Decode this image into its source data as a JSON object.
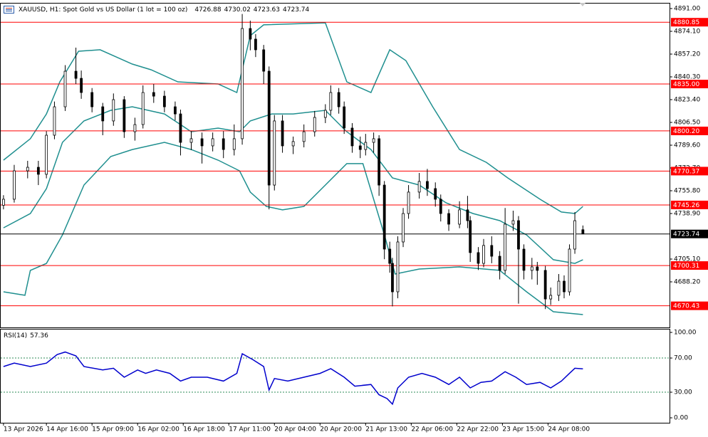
{
  "chart_data": [
    {
      "type": "candlestick",
      "title": "XAUUSD, H1:  Spot Gold vs US Dollar (1 lot = 100 oz)",
      "x": [
        0,
        4,
        9,
        13,
        16,
        19,
        23,
        27,
        29,
        33,
        37,
        41,
        45,
        49,
        52,
        56,
        60,
        64,
        66,
        70,
        74,
        78,
        82,
        86,
        89,
        92,
        94,
        97,
        99,
        101,
        104,
        108,
        112,
        116,
        120,
        122,
        125,
        127,
        130,
        133,
        135,
        138,
        140,
        142,
        144,
        145,
        147,
        149,
        151,
        155,
        158,
        161,
        163,
        166,
        170,
        173,
        174,
        177,
        179,
        182,
        185,
        187,
        190,
        192,
        194,
        197,
        199,
        202,
        204,
        207,
        209,
        211,
        213,
        216
      ],
      "open": [
        4745.0,
        4749.5,
        4770.6,
        4773.2,
        4768.0,
        4797.0,
        4818.1,
        4844.5,
        4839.2,
        4828.7,
        4818.1,
        4807.6,
        4823.4,
        4799.6,
        4804.9,
        4828.7,
        4826.0,
        4818.1,
        4812.8,
        4791.7,
        4794.4,
        4789.1,
        4794.4,
        4786.4,
        4794.4,
        4876.2,
        4868.3,
        4860.4,
        4844.5,
        4760.0,
        4807.6,
        4789.1,
        4792.3,
        4799.6,
        4810.2,
        4815.5,
        4828.7,
        4818.1,
        4802.3,
        4789.1,
        4786.4,
        4791.7,
        4794.4,
        4760.0,
        4712.5,
        4701.9,
        4680.8,
        4717.8,
        4738.9,
        4754.8,
        4762.7,
        4757.4,
        4749.5,
        4738.9,
        4731.0,
        4741.6,
        4733.6,
        4709.9,
        4701.9,
        4715.2,
        4707.2,
        4696.7,
        4731.0,
        4733.6,
        4712.5,
        4696.7,
        4699.3,
        4696.7,
        4675.5,
        4678.2,
        4688.7,
        4680.8,
        4712.5,
        4726.88
      ],
      "high": [
        4752.5,
        4775.0,
        4778.0,
        4778.0,
        4800.0,
        4822.0,
        4849.0,
        4862.0,
        4845.0,
        4832.0,
        4821.0,
        4828.0,
        4826.0,
        4810.0,
        4834.0,
        4835.0,
        4830.0,
        4822.0,
        4816.0,
        4800.0,
        4799.0,
        4799.0,
        4800.0,
        4805.0,
        4887.0,
        4882.0,
        4872.0,
        4864.0,
        4848.0,
        4812.0,
        4812.0,
        4796.0,
        4805.0,
        4815.0,
        4820.0,
        4834.0,
        4832.0,
        4822.0,
        4806.0,
        4796.0,
        4798.0,
        4799.0,
        4797.0,
        4763.0,
        4718.0,
        4706.0,
        4722.0,
        4743.0,
        4760.0,
        4769.0,
        4772.0,
        4762.0,
        4753.0,
        4742.0,
        4748.0,
        4752.0,
        4737.0,
        4714.0,
        4720.0,
        4722.0,
        4711.0,
        4743.0,
        4741.0,
        4737.0,
        4716.0,
        4706.0,
        4703.0,
        4700.0,
        4684.0,
        4694.0,
        4693.0,
        4716.0,
        4740.0,
        4730.02
      ],
      "low": [
        4742.0,
        4747.0,
        4765.0,
        4760.0,
        4765.0,
        4794.0,
        4815.0,
        4835.0,
        4824.0,
        4814.0,
        4797.0,
        4804.0,
        4795.0,
        4793.0,
        4802.0,
        4821.0,
        4814.0,
        4808.0,
        4782.0,
        4786.0,
        4776.0,
        4785.0,
        4780.0,
        4782.0,
        4790.0,
        4860.0,
        4855.0,
        4835.0,
        4742.0,
        4756.0,
        4784.0,
        4783.0,
        4788.0,
        4796.0,
        4806.0,
        4812.0,
        4813.0,
        4798.0,
        4784.0,
        4780.0,
        4782.0,
        4784.0,
        4752.0,
        4705.0,
        4695.0,
        4670.0,
        4676.0,
        4714.0,
        4735.0,
        4750.0,
        4752.0,
        4744.0,
        4733.0,
        4726.0,
        4728.0,
        4728.0,
        4703.0,
        4697.0,
        4699.0,
        4702.0,
        4690.0,
        4694.0,
        4726.0,
        4672.0,
        4690.0,
        4690.0,
        4686.0,
        4668.0,
        4671.0,
        4674.0,
        4676.0,
        4678.0,
        4709.0,
        4723.63
      ],
      "close": [
        4749.5,
        4770.6,
        4773.2,
        4768.0,
        4797.0,
        4818.1,
        4844.5,
        4839.2,
        4828.7,
        4818.1,
        4807.6,
        4823.4,
        4799.6,
        4804.9,
        4828.7,
        4826.0,
        4818.1,
        4812.8,
        4791.7,
        4794.4,
        4789.1,
        4794.4,
        4786.4,
        4794.4,
        4876.2,
        4868.3,
        4860.4,
        4844.5,
        4760.0,
        4807.6,
        4789.1,
        4792.3,
        4799.6,
        4810.2,
        4815.5,
        4828.7,
        4818.1,
        4802.3,
        4789.1,
        4786.4,
        4791.7,
        4794.4,
        4760.0,
        4712.5,
        4701.9,
        4680.8,
        4717.8,
        4738.9,
        4754.8,
        4762.7,
        4757.4,
        4749.5,
        4738.9,
        4731.0,
        4741.6,
        4733.6,
        4709.9,
        4701.9,
        4715.2,
        4707.2,
        4696.7,
        4731.0,
        4733.6,
        4712.5,
        4696.7,
        4699.3,
        4696.7,
        4675.5,
        4678.2,
        4688.7,
        4680.8,
        4712.5,
        4733.6,
        4723.74
      ],
      "up_color": "#ffffff",
      "down_color": "#000000",
      "wick_color": "#000000",
      "bands": [
        {
          "color": "#1f8f8f",
          "x": [
            0,
            10,
            16,
            21,
            28,
            36,
            48,
            55,
            65,
            80,
            87,
            92,
            97,
            120,
            128,
            137,
            144,
            150,
            160,
            170,
            180,
            188,
            200,
            208,
            213,
            216
          ],
          "values": [
            4778.5,
            4794.4,
            4812.8,
            4836.6,
            4859.3,
            4860.4,
            4849.8,
            4845.6,
            4836.6,
            4835.0,
            4828.7,
            4870.9,
            4878.9,
            4880.4,
            4836.6,
            4828.7,
            4860.4,
            4852.4,
            4818.1,
            4786.4,
            4776.9,
            4765.3,
            4749.5,
            4740.0,
            4738.9,
            4744.2
          ]
        },
        {
          "color": "#1f8f8f",
          "x": [
            0,
            10,
            16,
            22,
            30,
            40,
            48,
            60,
            70,
            80,
            88,
            92,
            100,
            108,
            120,
            128,
            137,
            145,
            155,
            165,
            175,
            185,
            195,
            205,
            213,
            216
          ],
          "values": [
            4728.3,
            4738.9,
            4757.4,
            4791.7,
            4807.6,
            4815.5,
            4818.1,
            4812.8,
            4799.6,
            4802.3,
            4799.6,
            4807.6,
            4812.8,
            4812.8,
            4815.5,
            4799.6,
            4786.4,
            4765.3,
            4760.0,
            4746.8,
            4738.9,
            4733.6,
            4723.0,
            4704.6,
            4701.9,
            4704.6
          ]
        },
        {
          "color": "#1f8f8f",
          "x": [
            0,
            8,
            10,
            16,
            22,
            30,
            40,
            48,
            60,
            70,
            80,
            88,
            92,
            98,
            104,
            112,
            120,
            128,
            134,
            142,
            146,
            155,
            170,
            185,
            195,
            205,
            216
          ],
          "values": [
            4680.8,
            4678.2,
            4696.7,
            4701.9,
            4723.0,
            4760.0,
            4781.2,
            4786.4,
            4791.7,
            4786.4,
            4778.5,
            4770.6,
            4754.8,
            4744.2,
            4741.6,
            4744.2,
            4760.0,
            4775.9,
            4775.9,
            4723.0,
            4694.0,
            4697.7,
            4699.3,
            4696.7,
            4680.8,
            4666.0,
            4663.9
          ]
        }
      ],
      "levels": [
        4880.85,
        {
          "value": 4835.0,
          "label": "4835.00"
        },
        {
          "value": 4800.2,
          "label": "4800.20"
        },
        4770.37,
        4745.26,
        4700.31,
        4670.43
      ],
      "level_color": "#ff0000",
      "last_color": "#000000",
      "xlim": [
        -1.3,
        248.3
      ],
      "ylim": [
        4654.4,
        4894.7
      ],
      "yticks": [
        {
          "value": 4891,
          "label": "4891.00"
        },
        {
          "value": 4874.1,
          "label": "4874.10"
        },
        {
          "value": 4857.2,
          "label": "4857.20"
        },
        {
          "value": 4840.3,
          "label": "4840.30"
        },
        {
          "value": 4823.4,
          "label": "4823.40"
        },
        {
          "value": 4806.5,
          "label": "4806.50"
        },
        {
          "value": 4789.6,
          "label": "4789.60"
        },
        {
          "value": 4772.7,
          "label": "4772.70"
        },
        {
          "value": 4755.8,
          "label": "4755.80"
        },
        {
          "value": 4738.9,
          "label": "4738.90"
        },
        {
          "value": 4705.1,
          "label": "4705.10"
        },
        {
          "value": 4688.2,
          "label": "4688.20"
        }
      ],
      "xticks": [
        {
          "value": 0,
          "label": "13 Apr 2026"
        },
        {
          "value": 16,
          "label": "14 Apr 16:00"
        },
        {
          "value": 33,
          "label": "15 Apr 09:00"
        },
        {
          "value": 50,
          "label": "16 Apr 02:00"
        },
        {
          "value": 67,
          "label": "16 Apr 18:00"
        },
        {
          "value": 84,
          "label": "17 Apr 11:00"
        },
        {
          "value": 101,
          "label": "20 Apr 04:00"
        },
        {
          "value": 118,
          "label": "20 Apr 20:00"
        },
        {
          "value": 135,
          "label": "21 Apr 13:00"
        },
        {
          "value": 152,
          "label": "22 Apr 06:00"
        },
        {
          "value": 169,
          "label": "22 Apr 22:00"
        },
        {
          "value": 186,
          "label": "23 Apr 15:00"
        },
        {
          "value": 203,
          "label": "24 Apr 08:00"
        }
      ]
    },
    {
      "type": "line",
      "title": "RSI(14)",
      "color": "#0000cd",
      "x": [
        0,
        4,
        10,
        16,
        20,
        23,
        27,
        30,
        37,
        41,
        45,
        50,
        53,
        57,
        62,
        66,
        70,
        76,
        82,
        87,
        89,
        93,
        97,
        99,
        101,
        106,
        112,
        118,
        122,
        127,
        131,
        137,
        140,
        143,
        145,
        147,
        151,
        156,
        161,
        166,
        170,
        174,
        178,
        182,
        187,
        191,
        195,
        200,
        204,
        208,
        211,
        213,
        216
      ],
      "values": [
        60,
        64,
        60,
        64,
        74,
        77,
        72.5,
        60,
        56,
        58,
        47.5,
        56,
        52,
        56,
        52,
        43,
        47.5,
        47.5,
        43,
        52,
        75,
        68,
        60,
        32.5,
        46,
        43,
        47.5,
        52,
        57.5,
        47.5,
        37,
        39,
        27,
        22.5,
        16,
        35,
        47.5,
        52,
        47.5,
        39,
        47.5,
        35,
        41.5,
        43,
        54,
        47.5,
        39,
        41.5,
        35,
        43,
        52,
        58,
        57.36
      ],
      "levels": [
        70,
        30
      ],
      "level_color": "#2e8b57",
      "xlim": [
        -1.3,
        248.3
      ],
      "ylim": [
        -5.8,
        104.2
      ],
      "yticks": [
        {
          "value": 100,
          "label": "100.00"
        },
        {
          "value": 70,
          "label": "70.00"
        },
        {
          "value": 30,
          "label": "30.00"
        },
        {
          "value": 0,
          "label": "0.00"
        }
      ]
    }
  ]
}
